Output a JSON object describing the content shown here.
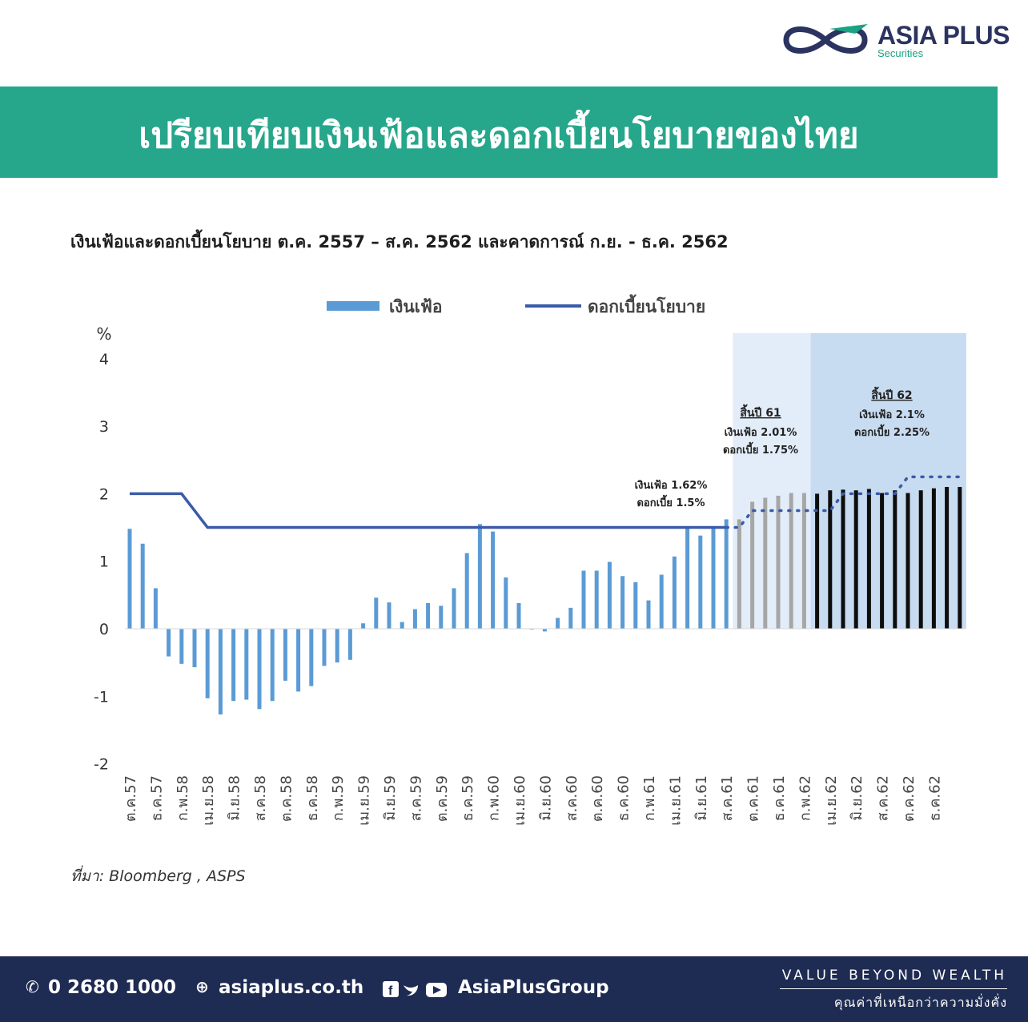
{
  "brand": {
    "name": "ASIA PLUS",
    "sub": "Securities",
    "primary": "#2b3360",
    "accent": "#1aa383"
  },
  "banner": {
    "title": "เปรียบเทียบเงินเฟ้อและดอกเบี้ยนโยบายของไทย",
    "color": "#26a68a"
  },
  "chart_data": {
    "type": "bar",
    "title": "เงินเฟ้อและดอกเบี้ยนโยบาย ต.ค. 2557 – ส.ค. 2562 และคาดการณ์ ก.ย. - ธ.ค. 2562",
    "ylabel": "%",
    "ylim": [
      -2,
      4
    ],
    "yticks": [
      4,
      3,
      2,
      1,
      0,
      -1,
      -2
    ],
    "grid": false,
    "legend_position": "top-center",
    "x_tick_labels": [
      "ต.ค.57",
      "ธ.ค.57",
      "ก.พ.58",
      "เม.ย.58",
      "มิ.ย.58",
      "ส.ค.58",
      "ต.ค.58",
      "ธ.ค.58",
      "ก.พ.59",
      "เม.ย.59",
      "มิ.ย.59",
      "ส.ค.59",
      "ต.ค.59",
      "ธ.ค.59",
      "ก.พ.60",
      "เม.ย.60",
      "มิ.ย.60",
      "ส.ค.60",
      "ต.ค.60",
      "ธ.ค.60",
      "ก.พ.61",
      "เม.ย.61",
      "มิ.ย.61",
      "ส.ค.61",
      "ต.ค.61",
      "ธ.ค.61",
      "ก.พ.62",
      "เม.ย.62",
      "มิ.ย.62",
      "ส.ค.62",
      "ต.ค.62",
      "ธ.ค.62"
    ],
    "series": [
      {
        "name": "เงินเฟ้อ",
        "kind": "bar",
        "color": "#5b9bd5",
        "values": [
          1.48,
          1.26,
          0.6,
          -0.41,
          -0.52,
          -0.57,
          -1.03,
          -1.27,
          -1.07,
          -1.05,
          -1.19,
          -1.07,
          -0.77,
          -0.93,
          -0.85,
          -0.55,
          -0.5,
          -0.46,
          0.08,
          0.46,
          0.39,
          0.1,
          0.29,
          0.38,
          0.34,
          0.6,
          1.12,
          1.55,
          1.44,
          0.76,
          0.38,
          0.0,
          -0.04,
          0.16,
          0.31,
          0.86,
          0.86,
          0.99,
          0.78,
          0.69,
          0.42,
          0.8,
          1.07,
          1.49,
          1.38,
          1.49,
          1.62,
          1.62,
          1.88,
          1.94,
          1.97,
          2.01,
          2.01,
          2.0,
          2.05,
          2.06,
          2.05,
          2.07,
          2.01,
          2.05,
          2.01,
          2.05,
          2.08,
          2.1,
          2.1
        ]
      },
      {
        "name": "ดอกเบี้ยนโยบาย",
        "kind": "line",
        "color": "#3a5ba8",
        "values": [
          2.0,
          2.0,
          2.0,
          2.0,
          2.0,
          1.75,
          1.5,
          1.5,
          1.5,
          1.5,
          1.5,
          1.5,
          1.5,
          1.5,
          1.5,
          1.5,
          1.5,
          1.5,
          1.5,
          1.5,
          1.5,
          1.5,
          1.5,
          1.5,
          1.5,
          1.5,
          1.5,
          1.5,
          1.5,
          1.5,
          1.5,
          1.5,
          1.5,
          1.5,
          1.5,
          1.5,
          1.5,
          1.5,
          1.5,
          1.5,
          1.5,
          1.5,
          1.5,
          1.5,
          1.5,
          1.5,
          1.5,
          1.5,
          1.75,
          1.75,
          1.75,
          1.75,
          1.75,
          1.75,
          1.75,
          2.0,
          2.0,
          2.0,
          2.0,
          2.0,
          2.25,
          2.25,
          2.25,
          2.25,
          2.25
        ]
      }
    ],
    "forecast_start_index": 47,
    "bar_colors": {
      "actual": "#5b9bd5",
      "forecast_2018": "#a6a6a6",
      "forecast_2019": "#0d0d0d"
    },
    "shaded_regions": [
      {
        "from": 47,
        "to": 52,
        "color": "#e3edf9"
      },
      {
        "from": 53,
        "to": 64,
        "color": "#c8dcf1"
      }
    ],
    "annotations": [
      {
        "lines": [
          "เงินเฟ้อ 1.62%",
          "ดอกเบี้ย 1.5%"
        ]
      },
      {
        "heading": "สิ้นปี 61",
        "lines": [
          "เงินเฟ้อ 2.01%",
          "ดอกเบี้ย 1.75%"
        ]
      },
      {
        "heading": "สิ้นปี 62",
        "lines": [
          "เงินเฟ้อ 2.1%",
          "ดอกเบี้ย 2.25%"
        ]
      }
    ],
    "source": "ที่มา: Bloomberg , ASPS"
  },
  "footer": {
    "phone": "0 2680 1000",
    "website": "asiaplus.co.th",
    "social": "AsiaPlusGroup",
    "tagline_en": "VALUE BEYOND WEALTH",
    "tagline_th": "คุณค่าที่เหนือกว่าความมั่งคั่ง",
    "background": "#1e2b52"
  }
}
